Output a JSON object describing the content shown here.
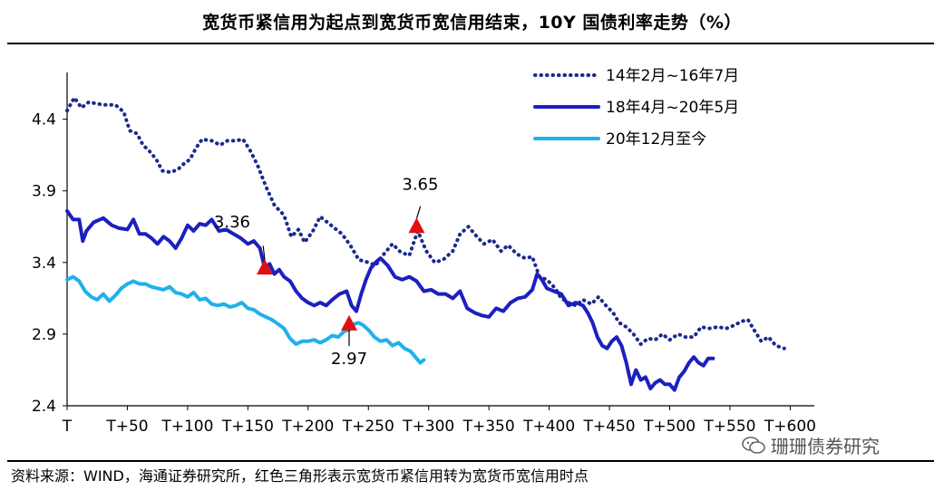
{
  "title": "宽货币紧信用为起点到宽货币宽信用结束，10Y 国债利率走势（%）",
  "footer": "资料来源：WIND，海通证券研究所，红色三角形表示宽货币紧信用转为宽货币宽信用时点",
  "watermark": "珊珊债券研究",
  "colors": {
    "dark_blue": "#1a2a8c",
    "medium_blue": "#1c1fc0",
    "light_blue": "#21b0ea",
    "marker_red": "#e01010"
  },
  "chart_data": {
    "type": "line",
    "x_label_ticks": [
      "T",
      "T+50",
      "T+100",
      "T+150",
      "T+200",
      "T+250",
      "T+300",
      "T+350",
      "T+400",
      "T+450",
      "T+500",
      "T+550",
      "T+600"
    ],
    "x_range": [
      0,
      620
    ],
    "y_range": [
      2.4,
      4.6
    ],
    "y_ticks": [
      "2.4",
      "2.9",
      "3.4",
      "3.9",
      "4.4"
    ],
    "legend_position": "top-right",
    "series": [
      {
        "name": "14年2月~16年7月",
        "color": "#1a2a8c",
        "style": "dotted",
        "points": [
          [
            0,
            4.46
          ],
          [
            6,
            4.55
          ],
          [
            12,
            4.48
          ],
          [
            18,
            4.52
          ],
          [
            30,
            4.5
          ],
          [
            40,
            4.5
          ],
          [
            47,
            4.45
          ],
          [
            52,
            4.32
          ],
          [
            58,
            4.3
          ],
          [
            63,
            4.22
          ],
          [
            68,
            4.18
          ],
          [
            74,
            4.12
          ],
          [
            79,
            4.04
          ],
          [
            86,
            4.03
          ],
          [
            92,
            4.05
          ],
          [
            97,
            4.09
          ],
          [
            102,
            4.12
          ],
          [
            107,
            4.2
          ],
          [
            112,
            4.26
          ],
          [
            120,
            4.25
          ],
          [
            127,
            4.22
          ],
          [
            133,
            4.25
          ],
          [
            140,
            4.25
          ],
          [
            146,
            4.26
          ],
          [
            152,
            4.18
          ],
          [
            158,
            4.08
          ],
          [
            165,
            3.93
          ],
          [
            172,
            3.8
          ],
          [
            180,
            3.73
          ],
          [
            186,
            3.58
          ],
          [
            192,
            3.63
          ],
          [
            197,
            3.54
          ],
          [
            204,
            3.62
          ],
          [
            210,
            3.72
          ],
          [
            216,
            3.68
          ],
          [
            222,
            3.64
          ],
          [
            228,
            3.6
          ],
          [
            235,
            3.52
          ],
          [
            242,
            3.42
          ],
          [
            250,
            3.4
          ],
          [
            256,
            3.38
          ],
          [
            263,
            3.46
          ],
          [
            270,
            3.53
          ],
          [
            277,
            3.47
          ],
          [
            284,
            3.45
          ],
          [
            291,
            3.62
          ],
          [
            298,
            3.48
          ],
          [
            305,
            3.4
          ],
          [
            312,
            3.42
          ],
          [
            320,
            3.48
          ],
          [
            326,
            3.6
          ],
          [
            333,
            3.65
          ],
          [
            340,
            3.58
          ],
          [
            346,
            3.53
          ],
          [
            353,
            3.56
          ],
          [
            360,
            3.48
          ],
          [
            366,
            3.52
          ],
          [
            373,
            3.46
          ],
          [
            380,
            3.43
          ],
          [
            386,
            3.44
          ],
          [
            392,
            3.3
          ],
          [
            398,
            3.28
          ],
          [
            405,
            3.22
          ],
          [
            410,
            3.15
          ],
          [
            416,
            3.12
          ],
          [
            422,
            3.1
          ],
          [
            428,
            3.14
          ],
          [
            435,
            3.11
          ],
          [
            441,
            3.16
          ],
          [
            447,
            3.1
          ],
          [
            453,
            3.05
          ],
          [
            458,
            2.98
          ],
          [
            464,
            2.95
          ],
          [
            470,
            2.9
          ],
          [
            476,
            2.83
          ],
          [
            482,
            2.87
          ],
          [
            488,
            2.86
          ],
          [
            494,
            2.9
          ],
          [
            500,
            2.86
          ],
          [
            507,
            2.9
          ],
          [
            513,
            2.88
          ],
          [
            520,
            2.88
          ],
          [
            526,
            2.95
          ],
          [
            533,
            2.94
          ],
          [
            540,
            2.95
          ],
          [
            547,
            2.94
          ],
          [
            553,
            2.96
          ],
          [
            560,
            2.99
          ],
          [
            565,
            3.0
          ],
          [
            570,
            2.93
          ],
          [
            576,
            2.85
          ],
          [
            582,
            2.88
          ],
          [
            588,
            2.82
          ],
          [
            595,
            2.8
          ]
        ]
      },
      {
        "name": "18年4月~20年5月",
        "color": "#1c1fc0",
        "style": "solid",
        "points": [
          [
            0,
            3.76
          ],
          [
            5,
            3.7
          ],
          [
            10,
            3.7
          ],
          [
            13,
            3.55
          ],
          [
            16,
            3.62
          ],
          [
            22,
            3.68
          ],
          [
            30,
            3.71
          ],
          [
            37,
            3.66
          ],
          [
            43,
            3.64
          ],
          [
            50,
            3.63
          ],
          [
            55,
            3.7
          ],
          [
            60,
            3.6
          ],
          [
            65,
            3.6
          ],
          [
            70,
            3.57
          ],
          [
            75,
            3.53
          ],
          [
            80,
            3.58
          ],
          [
            85,
            3.55
          ],
          [
            90,
            3.5
          ],
          [
            95,
            3.57
          ],
          [
            100,
            3.66
          ],
          [
            105,
            3.62
          ],
          [
            110,
            3.67
          ],
          [
            115,
            3.66
          ],
          [
            120,
            3.7
          ],
          [
            126,
            3.62
          ],
          [
            132,
            3.63
          ],
          [
            138,
            3.6
          ],
          [
            144,
            3.57
          ],
          [
            150,
            3.53
          ],
          [
            155,
            3.55
          ],
          [
            160,
            3.5
          ],
          [
            164,
            3.36
          ],
          [
            168,
            3.39
          ],
          [
            172,
            3.32
          ],
          [
            176,
            3.35
          ],
          [
            180,
            3.3
          ],
          [
            185,
            3.27
          ],
          [
            190,
            3.2
          ],
          [
            195,
            3.15
          ],
          [
            200,
            3.12
          ],
          [
            205,
            3.1
          ],
          [
            210,
            3.12
          ],
          [
            215,
            3.1
          ],
          [
            220,
            3.14
          ],
          [
            226,
            3.18
          ],
          [
            232,
            3.2
          ],
          [
            236,
            3.1
          ],
          [
            240,
            3.06
          ],
          [
            244,
            3.18
          ],
          [
            248,
            3.28
          ],
          [
            252,
            3.36
          ],
          [
            256,
            3.4
          ],
          [
            260,
            3.43
          ],
          [
            266,
            3.38
          ],
          [
            272,
            3.3
          ],
          [
            278,
            3.28
          ],
          [
            284,
            3.3
          ],
          [
            290,
            3.27
          ],
          [
            296,
            3.2
          ],
          [
            302,
            3.21
          ],
          [
            308,
            3.18
          ],
          [
            314,
            3.18
          ],
          [
            320,
            3.15
          ],
          [
            326,
            3.2
          ],
          [
            332,
            3.08
          ],
          [
            338,
            3.05
          ],
          [
            344,
            3.03
          ],
          [
            350,
            3.02
          ],
          [
            356,
            3.08
          ],
          [
            362,
            3.06
          ],
          [
            368,
            3.12
          ],
          [
            374,
            3.15
          ],
          [
            380,
            3.16
          ],
          [
            386,
            3.21
          ],
          [
            390,
            3.32
          ],
          [
            394,
            3.28
          ],
          [
            398,
            3.22
          ],
          [
            404,
            3.2
          ],
          [
            410,
            3.18
          ],
          [
            416,
            3.1
          ],
          [
            422,
            3.12
          ],
          [
            428,
            3.1
          ],
          [
            432,
            3.05
          ],
          [
            436,
            2.98
          ],
          [
            440,
            2.88
          ],
          [
            444,
            2.82
          ],
          [
            448,
            2.8
          ],
          [
            452,
            2.85
          ],
          [
            456,
            2.88
          ],
          [
            460,
            2.82
          ],
          [
            464,
            2.7
          ],
          [
            468,
            2.55
          ],
          [
            472,
            2.65
          ],
          [
            476,
            2.58
          ],
          [
            480,
            2.6
          ],
          [
            484,
            2.52
          ],
          [
            488,
            2.56
          ],
          [
            492,
            2.58
          ],
          [
            496,
            2.55
          ],
          [
            500,
            2.55
          ],
          [
            504,
            2.51
          ],
          [
            508,
            2.6
          ],
          [
            512,
            2.64
          ],
          [
            516,
            2.7
          ],
          [
            520,
            2.74
          ],
          [
            524,
            2.7
          ],
          [
            528,
            2.68
          ],
          [
            532,
            2.73
          ],
          [
            536,
            2.73
          ]
        ]
      },
      {
        "name": "20年12月至今",
        "color": "#21b0ea",
        "style": "solid",
        "points": [
          [
            0,
            3.28
          ],
          [
            5,
            3.3
          ],
          [
            10,
            3.27
          ],
          [
            15,
            3.2
          ],
          [
            20,
            3.16
          ],
          [
            25,
            3.14
          ],
          [
            30,
            3.18
          ],
          [
            35,
            3.13
          ],
          [
            40,
            3.17
          ],
          [
            45,
            3.22
          ],
          [
            50,
            3.25
          ],
          [
            55,
            3.27
          ],
          [
            60,
            3.25
          ],
          [
            65,
            3.25
          ],
          [
            70,
            3.23
          ],
          [
            75,
            3.22
          ],
          [
            80,
            3.21
          ],
          [
            85,
            3.23
          ],
          [
            90,
            3.19
          ],
          [
            95,
            3.18
          ],
          [
            100,
            3.16
          ],
          [
            105,
            3.19
          ],
          [
            110,
            3.14
          ],
          [
            115,
            3.15
          ],
          [
            120,
            3.11
          ],
          [
            125,
            3.1
          ],
          [
            130,
            3.11
          ],
          [
            135,
            3.09
          ],
          [
            140,
            3.1
          ],
          [
            145,
            3.12
          ],
          [
            150,
            3.08
          ],
          [
            155,
            3.07
          ],
          [
            160,
            3.04
          ],
          [
            165,
            3.02
          ],
          [
            170,
            3.0
          ],
          [
            175,
            2.97
          ],
          [
            180,
            2.94
          ],
          [
            185,
            2.87
          ],
          [
            190,
            2.83
          ],
          [
            195,
            2.85
          ],
          [
            200,
            2.85
          ],
          [
            205,
            2.86
          ],
          [
            210,
            2.84
          ],
          [
            215,
            2.86
          ],
          [
            220,
            2.89
          ],
          [
            225,
            2.88
          ],
          [
            230,
            2.92
          ],
          [
            234,
            2.93
          ],
          [
            238,
            2.97
          ],
          [
            242,
            2.98
          ],
          [
            246,
            2.96
          ],
          [
            250,
            2.93
          ],
          [
            255,
            2.88
          ],
          [
            260,
            2.85
          ],
          [
            265,
            2.86
          ],
          [
            270,
            2.82
          ],
          [
            275,
            2.84
          ],
          [
            280,
            2.8
          ],
          [
            285,
            2.78
          ],
          [
            290,
            2.73
          ],
          [
            293,
            2.7
          ],
          [
            296,
            2.72
          ]
        ]
      }
    ],
    "markers": [
      {
        "label": "3.36",
        "x": 164,
        "y": 3.36
      },
      {
        "label": "3.65",
        "x": 290,
        "y": 3.65
      },
      {
        "label": "2.97",
        "x": 234,
        "y": 2.97
      }
    ]
  }
}
